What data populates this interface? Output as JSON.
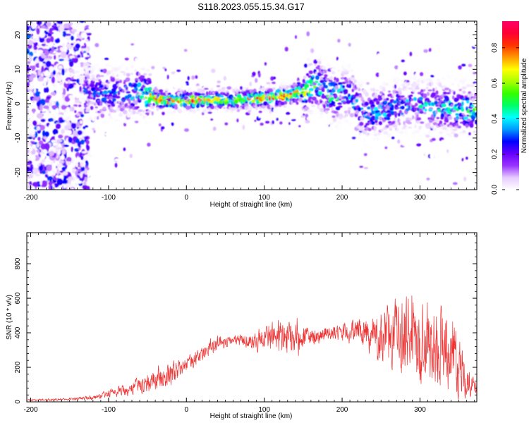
{
  "figure": {
    "title": "S118.2023.055.15.34.G17"
  },
  "chart_data": [
    {
      "type": "heatmap",
      "xlabel": "Height of straight line (km)",
      "ylabel": "Frequency (Hz)",
      "xlim": [
        -205,
        373
      ],
      "ylim": [
        -25,
        24
      ],
      "xticks": [
        -200,
        -100,
        0,
        100,
        200,
        300
      ],
      "yticks": [
        -20,
        -10,
        0,
        10,
        20
      ],
      "colorbar": {
        "label": "Normalized spectral amplitude",
        "range": [
          0,
          0.95
        ],
        "ticks": [
          0.0,
          0.2,
          0.4,
          0.6,
          0.8
        ],
        "colormap": [
          "#ffffff",
          "#e6ccff",
          "#9933ff",
          "#6600ff",
          "#0000ff",
          "#0099ff",
          "#00ffff",
          "#00ff66",
          "#33ff00",
          "#aaff00",
          "#ffff00",
          "#ff9900",
          "#ff3300",
          "#ff0033",
          "#ff0066"
        ]
      },
      "ridge": {
        "x": [
          -130,
          -110,
          -90,
          -70,
          -55,
          -45,
          -35,
          -20,
          0,
          20,
          40,
          60,
          80,
          100,
          120,
          135,
          150,
          160,
          170,
          180,
          190,
          200,
          210,
          220,
          230,
          250,
          270,
          290,
          310,
          330,
          350,
          370
        ],
        "y": [
          3,
          3,
          3,
          3,
          3,
          2,
          1,
          1,
          1,
          1,
          1,
          1,
          1.5,
          1.5,
          2,
          2.5,
          3.5,
          5,
          5.5,
          3,
          2,
          2.5,
          3,
          -1,
          -3,
          -2,
          -1,
          -0.5,
          -0.5,
          -1,
          -1.5,
          -2
        ],
        "amplitude": [
          0.3,
          0.35,
          0.35,
          0.4,
          0.55,
          0.75,
          0.9,
          0.9,
          0.85,
          0.8,
          0.7,
          0.7,
          0.75,
          0.8,
          0.9,
          0.85,
          0.7,
          0.6,
          0.5,
          0.55,
          0.6,
          0.5,
          0.4,
          0.4,
          0.45,
          0.45,
          0.4,
          0.4,
          0.45,
          0.45,
          0.5,
          0.55
        ]
      }
    },
    {
      "type": "line",
      "xlabel": "Height of straight line (km)",
      "ylabel": "SNR (10 * v/v)",
      "xlim": [
        -205,
        373
      ],
      "ylim": [
        0,
        980
      ],
      "xticks": [
        -200,
        -100,
        0,
        100,
        200,
        300
      ],
      "yticks": [
        0,
        200,
        400,
        600,
        800
      ],
      "color": "#ee3333",
      "series": [
        {
          "name": "",
          "envelope": {
            "x": [
              -205,
              -150,
              -120,
              -100,
              -80,
              -60,
              -40,
              -20,
              -10,
              0,
              20,
              40,
              60,
              80,
              100,
              120,
              140,
              160,
              180,
              200,
              220,
              240,
              260,
              280,
              300,
              320,
              340,
              350,
              360,
              373
            ],
            "mean": [
              10,
              15,
              25,
              45,
              70,
              100,
              130,
              160,
              190,
              220,
              280,
              340,
              360,
              350,
              370,
              380,
              360,
              380,
              390,
              400,
              410,
              380,
              380,
              380,
              360,
              340,
              300,
              220,
              120,
              80
            ],
            "spread": [
              8,
              10,
              20,
              35,
              50,
              70,
              90,
              110,
              90,
              60,
              70,
              60,
              40,
              60,
              100,
              160,
              150,
              80,
              60,
              70,
              100,
              180,
              250,
              320,
              360,
              330,
              320,
              250,
              120,
              60
            ]
          }
        }
      ]
    }
  ]
}
